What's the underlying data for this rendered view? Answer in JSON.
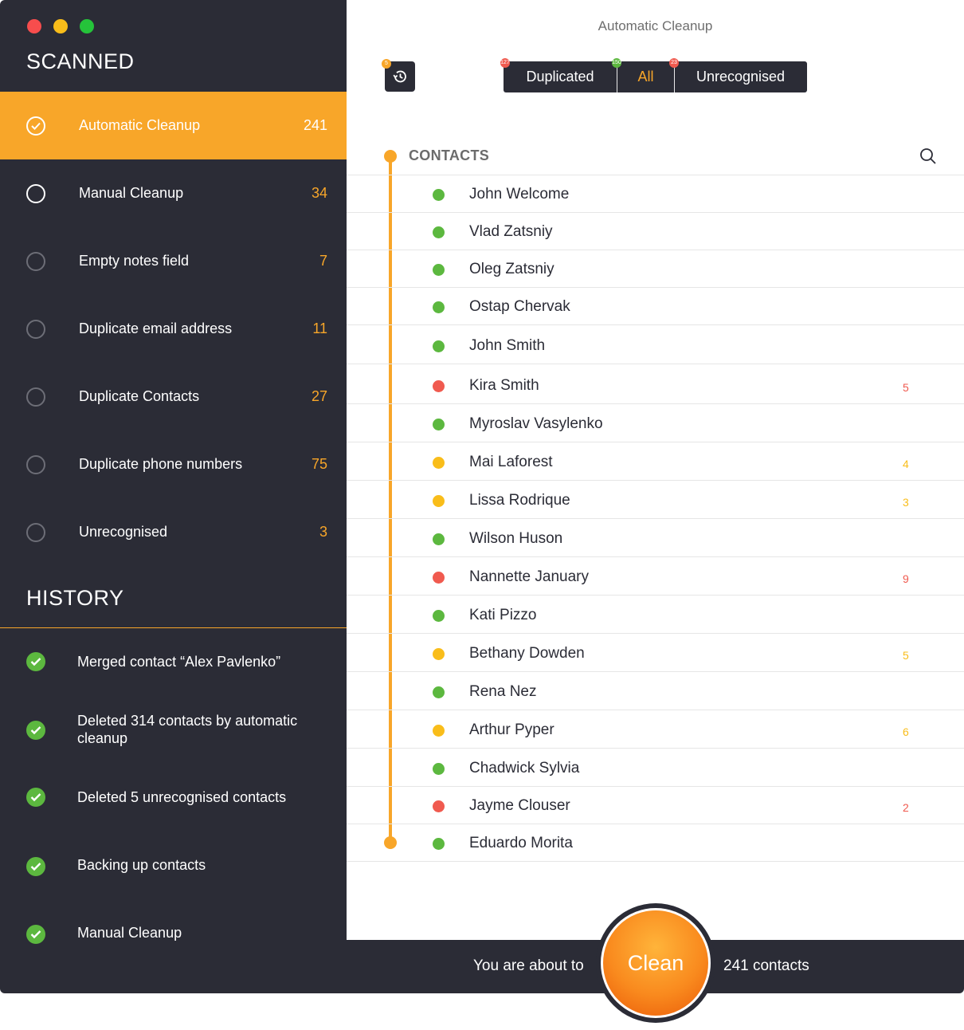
{
  "window": {
    "title": "Automatic Cleanup"
  },
  "sidebar": {
    "scanned_title": "SCANNED",
    "scanned_items": [
      {
        "label": "Automatic Cleanup",
        "count": "241",
        "active": true
      },
      {
        "label": "Manual Cleanup",
        "count": "34"
      },
      {
        "label": "Empty notes field",
        "count": "7"
      },
      {
        "label": "Duplicate email address",
        "count": "11"
      },
      {
        "label": "Duplicate Contacts",
        "count": "27"
      },
      {
        "label": "Duplicate phone numbers",
        "count": "75"
      },
      {
        "label": "Unrecognised",
        "count": "3"
      }
    ],
    "history_title": "HISTORY",
    "history_items": [
      {
        "label": "Merged contact “Alex Pavlenko”"
      },
      {
        "label": "Deleted 314 contacts by automatic cleanup"
      },
      {
        "label": "Deleted 5 unrecognised contacts"
      },
      {
        "label": "Backing up contacts"
      },
      {
        "label": "Manual Cleanup"
      }
    ]
  },
  "toolbar": {
    "history_badge": "5",
    "filters": [
      {
        "label": "Duplicated",
        "badge": "127",
        "badge_color": "#f05a4f"
      },
      {
        "label": "All",
        "badge": "150",
        "badge_color": "#5cb83f",
        "selected": true
      },
      {
        "label": "Unrecognised",
        "badge": "23",
        "badge_color": "#f05a4f"
      }
    ]
  },
  "contacts": {
    "header": "CONTACTS",
    "items": [
      {
        "name": "John Welcome",
        "status": "green",
        "count": ""
      },
      {
        "name": "Vlad Zatsniy",
        "status": "green",
        "count": ""
      },
      {
        "name": "Oleg Zatsniy",
        "status": "green",
        "count": ""
      },
      {
        "name": "Ostap Chervak",
        "status": "green",
        "count": ""
      },
      {
        "name": "John Smith",
        "status": "green",
        "count": ""
      },
      {
        "name": "Kira Smith",
        "status": "red",
        "count": "5"
      },
      {
        "name": "Myroslav Vasylenko",
        "status": "green",
        "count": ""
      },
      {
        "name": "Mai Laforest",
        "status": "yellow",
        "count": "4"
      },
      {
        "name": "Lissa Rodrique",
        "status": "yellow",
        "count": "3"
      },
      {
        "name": "Wilson Huson",
        "status": "green",
        "count": ""
      },
      {
        "name": "Nannette January",
        "status": "red",
        "count": "9"
      },
      {
        "name": "Kati Pizzo",
        "status": "green",
        "count": ""
      },
      {
        "name": "Bethany Dowden",
        "status": "yellow",
        "count": "5"
      },
      {
        "name": "Rena Nez",
        "status": "green",
        "count": ""
      },
      {
        "name": "Arthur Pyper",
        "status": "yellow",
        "count": "6"
      },
      {
        "name": "Chadwick Sylvia",
        "status": "green",
        "count": ""
      },
      {
        "name": "Jayme Clouser",
        "status": "red",
        "count": "2"
      },
      {
        "name": "Eduardo Morita",
        "status": "green",
        "count": ""
      }
    ]
  },
  "footer": {
    "prefix": "You are about to",
    "button": "Clean",
    "suffix": "241 contacts"
  },
  "colors": {
    "accent": "#f8a629",
    "dark": "#2b2c36",
    "green": "#5cb83f",
    "yellow": "#f9bd1a",
    "red": "#f05a4f"
  }
}
